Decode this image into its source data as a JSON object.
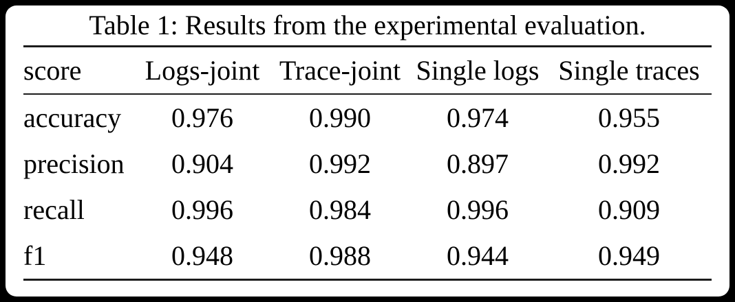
{
  "frame": {
    "background": "#000000",
    "card_background": "#ffffff"
  },
  "colors": {
    "text": "#000000",
    "rule": "#1c1c1c"
  },
  "table": {
    "caption": "Table 1: Results from the experimental evaluation.",
    "columns": [
      "score",
      "Logs-joint",
      "Trace-joint",
      "Single logs",
      "Single traces"
    ],
    "rows": [
      {
        "label": "accuracy",
        "values": [
          "0.976",
          "0.990",
          "0.974",
          "0.955"
        ]
      },
      {
        "label": "precision",
        "values": [
          "0.904",
          "0.992",
          "0.897",
          "0.992"
        ]
      },
      {
        "label": "recall",
        "values": [
          "0.996",
          "0.984",
          "0.996",
          "0.909"
        ]
      },
      {
        "label": "f1",
        "values": [
          "0.948",
          "0.988",
          "0.944",
          "0.949"
        ]
      }
    ]
  },
  "chart_data": {
    "type": "table",
    "title": "Table 1: Results from the experimental evaluation.",
    "columns": [
      "score",
      "Logs-joint",
      "Trace-joint",
      "Single logs",
      "Single traces"
    ],
    "rows": [
      [
        "accuracy",
        0.976,
        0.99,
        0.974,
        0.955
      ],
      [
        "precision",
        0.904,
        0.992,
        0.897,
        0.992
      ],
      [
        "recall",
        0.996,
        0.984,
        0.996,
        0.909
      ],
      [
        "f1",
        0.948,
        0.988,
        0.944,
        0.949
      ]
    ]
  }
}
